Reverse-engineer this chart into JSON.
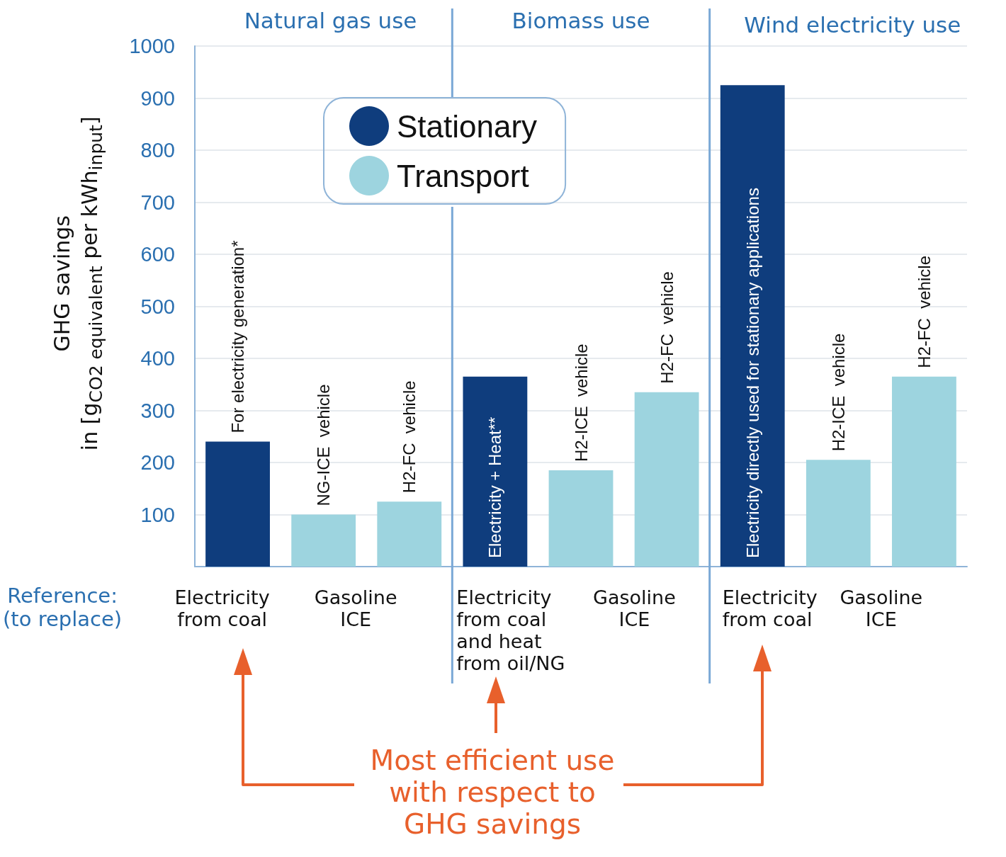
{
  "chart_data": {
    "type": "bar",
    "ylabel": "GHG savings\nin [g$_{CO2 equivalent}$ per kWh$_{input}$]",
    "categories": [
      "For electricity generation*",
      "NG-ICE  vehicle",
      "H2-FC  vehicle",
      "Electricity + Heat**",
      "H2-ICE  vehicle",
      "H2-FC  vehicle",
      "Electricity directly used for stationary applications",
      "H2-ICE  vehicle",
      "H2-FC  vehicle"
    ],
    "series": [
      {
        "name": "Stationary",
        "color": "#0f3d7d",
        "values": [
          240,
          null,
          null,
          365,
          null,
          null,
          925,
          null,
          null
        ]
      },
      {
        "name": "Transport",
        "color": "#9dd4df",
        "values": [
          null,
          100,
          125,
          null,
          185,
          335,
          null,
          205,
          365
        ]
      }
    ],
    "ylim": [
      0,
      1000
    ],
    "yticks": [
      {
        "value": 0,
        "label": null
      },
      100,
      200,
      300,
      400,
      500,
      600,
      700,
      800,
      900,
      1000
    ],
    "grid": "y",
    "legend": "top",
    "annotations": [
      "Natural gas use",
      "Biomass use",
      "Wind electricity use",
      "Reference:\n(to replace)",
      "Electricity\nfrom coal",
      "Gasoline\nICE",
      "Electricity\nfrom coal\nand heat\nfrom oil/NG",
      "Gasoline\nICE",
      "Electricity\nfrom coal",
      "Gasoline\nICE",
      "Most efficient use\nwith respect to\nGHG savings"
    ]
  }
}
